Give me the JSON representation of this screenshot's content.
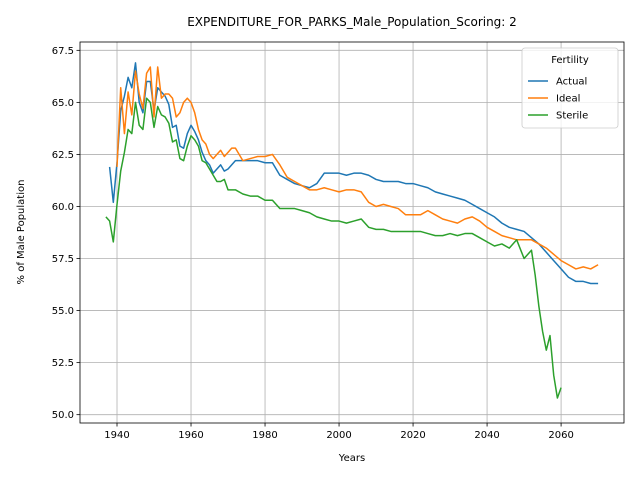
{
  "chart_data": {
    "type": "line",
    "title": "EXPENDITURE_FOR_PARKS_Male_Population_Scoring: 2",
    "xlabel": "Years",
    "ylabel": "% of Male Population",
    "xlim": [
      1930,
      2077
    ],
    "ylim": [
      49.6,
      67.9
    ],
    "xticks": [
      1940,
      1960,
      1980,
      2000,
      2020,
      2040,
      2060
    ],
    "yticks": [
      50.0,
      52.5,
      55.0,
      57.5,
      60.0,
      62.5,
      65.0,
      67.5
    ],
    "ytick_labels": [
      "50.0",
      "52.5",
      "55.0",
      "57.5",
      "60.0",
      "62.5",
      "65.0",
      "67.5"
    ],
    "grid": true,
    "legend": {
      "title": "Fertility",
      "placement": "top-right"
    },
    "series": [
      {
        "name": "Actual",
        "color": "#1f77b4",
        "x": [
          1938,
          1939,
          1940,
          1941,
          1942,
          1943,
          1944,
          1945,
          1946,
          1947,
          1948,
          1949,
          1950,
          1951,
          1952,
          1953,
          1954,
          1955,
          1956,
          1957,
          1958,
          1959,
          1960,
          1961,
          1962,
          1963,
          1964,
          1965,
          1966,
          1967,
          1968,
          1969,
          1970,
          1972,
          1974,
          1976,
          1978,
          1980,
          1982,
          1984,
          1986,
          1988,
          1990,
          1992,
          1994,
          1996,
          1998,
          2000,
          2002,
          2004,
          2006,
          2008,
          2010,
          2012,
          2014,
          2016,
          2018,
          2020,
          2022,
          2024,
          2026,
          2028,
          2030,
          2032,
          2034,
          2036,
          2038,
          2040,
          2042,
          2044,
          2046,
          2048,
          2050,
          2052,
          2054,
          2056,
          2058,
          2060,
          2062,
          2064,
          2066,
          2068,
          2070
        ],
        "values": [
          61.9,
          60.2,
          62.1,
          64.6,
          65.3,
          66.2,
          65.7,
          66.9,
          65.0,
          64.5,
          66.0,
          66.0,
          64.6,
          65.7,
          65.5,
          65.3,
          64.9,
          63.8,
          63.9,
          62.9,
          62.8,
          63.5,
          63.9,
          63.6,
          63.2,
          62.6,
          62.2,
          62.0,
          61.6,
          61.8,
          62.0,
          61.7,
          61.8,
          62.2,
          62.2,
          62.2,
          62.2,
          62.1,
          62.1,
          61.5,
          61.3,
          61.1,
          61.0,
          60.9,
          61.1,
          61.6,
          61.6,
          61.6,
          61.5,
          61.6,
          61.6,
          61.5,
          61.3,
          61.2,
          61.2,
          61.2,
          61.1,
          61.1,
          61.0,
          60.9,
          60.7,
          60.6,
          60.5,
          60.4,
          60.3,
          60.1,
          59.9,
          59.7,
          59.5,
          59.2,
          59.0,
          58.9,
          58.8,
          58.5,
          58.2,
          57.8,
          57.4,
          57.0,
          56.6,
          56.4,
          56.4,
          56.3,
          56.3
        ]
      },
      {
        "name": "Ideal",
        "color": "#ff7f0e",
        "x": [
          1940,
          1941,
          1942,
          1943,
          1944,
          1945,
          1946,
          1947,
          1948,
          1949,
          1950,
          1951,
          1952,
          1953,
          1954,
          1955,
          1956,
          1957,
          1958,
          1959,
          1960,
          1961,
          1962,
          1963,
          1964,
          1965,
          1966,
          1967,
          1968,
          1969,
          1970,
          1971,
          1972,
          1974,
          1976,
          1978,
          1980,
          1982,
          1984,
          1986,
          1988,
          1990,
          1992,
          1994,
          1996,
          1998,
          2000,
          2002,
          2004,
          2006,
          2008,
          2010,
          2012,
          2014,
          2016,
          2018,
          2020,
          2022,
          2024,
          2026,
          2028,
          2030,
          2032,
          2034,
          2036,
          2038,
          2040,
          2042,
          2044,
          2046,
          2048,
          2050,
          2052,
          2054,
          2056,
          2058,
          2060,
          2062,
          2064,
          2066,
          2068,
          2070
        ],
        "values": [
          61.9,
          65.7,
          63.5,
          65.5,
          64.4,
          66.5,
          65.4,
          64.7,
          66.4,
          66.7,
          64.3,
          66.7,
          65.2,
          65.4,
          65.4,
          65.2,
          64.3,
          64.5,
          65.0,
          65.2,
          65.0,
          64.5,
          63.7,
          63.2,
          63.0,
          62.5,
          62.3,
          62.5,
          62.7,
          62.4,
          62.6,
          62.8,
          62.8,
          62.2,
          62.3,
          62.4,
          62.4,
          62.5,
          62.0,
          61.4,
          61.2,
          61.0,
          60.8,
          60.8,
          60.9,
          60.8,
          60.7,
          60.8,
          60.8,
          60.7,
          60.2,
          60.0,
          60.1,
          60.0,
          59.9,
          59.6,
          59.6,
          59.6,
          59.8,
          59.6,
          59.4,
          59.3,
          59.2,
          59.4,
          59.5,
          59.3,
          59.0,
          58.8,
          58.6,
          58.5,
          58.4,
          58.4,
          58.4,
          58.2,
          58.0,
          57.7,
          57.4,
          57.2,
          57.0,
          57.1,
          57.0,
          57.2
        ]
      },
      {
        "name": "Sterile",
        "color": "#2ca02c",
        "x": [
          1937,
          1938,
          1939,
          1940,
          1941,
          1942,
          1943,
          1944,
          1945,
          1946,
          1947,
          1948,
          1949,
          1950,
          1951,
          1952,
          1953,
          1954,
          1955,
          1956,
          1957,
          1958,
          1959,
          1960,
          1961,
          1962,
          1963,
          1964,
          1965,
          1966,
          1967,
          1968,
          1969,
          1970,
          1972,
          1974,
          1976,
          1978,
          1980,
          1982,
          1984,
          1986,
          1988,
          1990,
          1992,
          1994,
          1996,
          1998,
          2000,
          2002,
          2004,
          2006,
          2008,
          2010,
          2012,
          2014,
          2016,
          2018,
          2020,
          2022,
          2024,
          2026,
          2028,
          2030,
          2032,
          2034,
          2036,
          2038,
          2040,
          2042,
          2044,
          2046,
          2048,
          2050,
          2052,
          2053,
          2054,
          2055,
          2056,
          2057,
          2058,
          2059,
          2060
        ],
        "values": [
          59.5,
          59.3,
          58.3,
          60.1,
          61.7,
          62.6,
          63.7,
          63.5,
          65.0,
          63.9,
          63.7,
          65.2,
          65.0,
          63.8,
          64.8,
          64.4,
          64.3,
          64.0,
          63.1,
          63.2,
          62.3,
          62.2,
          62.9,
          63.4,
          63.2,
          62.9,
          62.2,
          62.1,
          61.8,
          61.5,
          61.2,
          61.2,
          61.3,
          60.8,
          60.8,
          60.6,
          60.5,
          60.5,
          60.3,
          60.3,
          59.9,
          59.9,
          59.9,
          59.8,
          59.7,
          59.5,
          59.4,
          59.3,
          59.3,
          59.2,
          59.3,
          59.4,
          59.0,
          58.9,
          58.9,
          58.8,
          58.8,
          58.8,
          58.8,
          58.8,
          58.7,
          58.6,
          58.6,
          58.7,
          58.6,
          58.7,
          58.7,
          58.5,
          58.3,
          58.1,
          58.2,
          58.0,
          58.4,
          57.5,
          57.9,
          56.7,
          55.2,
          54.0,
          53.1,
          53.8,
          51.9,
          50.8,
          51.3
        ]
      }
    ]
  }
}
